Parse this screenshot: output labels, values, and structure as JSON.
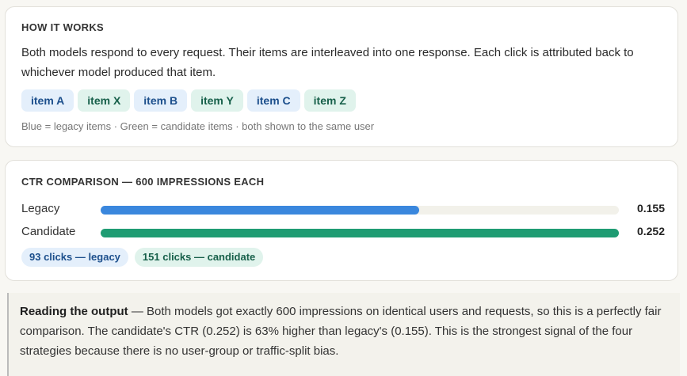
{
  "how_it_works": {
    "heading": "HOW IT WORKS",
    "description": "Both models respond to every request. Their items are interleaved into one response. Each click is attributed back to whichever model produced that item.",
    "items": [
      {
        "label": "item A",
        "model": "legacy"
      },
      {
        "label": "item X",
        "model": "candidate"
      },
      {
        "label": "item B",
        "model": "legacy"
      },
      {
        "label": "item Y",
        "model": "candidate"
      },
      {
        "label": "item C",
        "model": "legacy"
      },
      {
        "label": "item Z",
        "model": "candidate"
      }
    ],
    "legend": "Blue = legacy items · Green = candidate items · both shown to the same user"
  },
  "ctr": {
    "heading": "CTR COMPARISON — 600 IMPRESSIONS EACH",
    "rows": [
      {
        "label": "Legacy",
        "value": "0.155",
        "ctr": 0.155,
        "color": "#3a87dd"
      },
      {
        "label": "Candidate",
        "value": "0.252",
        "ctr": 0.252,
        "color": "#1f9c73"
      }
    ],
    "clicks": [
      "93 clicks — legacy",
      "151 clicks — candidate"
    ]
  },
  "note": {
    "title": "Reading the output",
    "body": " — Both models got exactly 600 impressions on identical users and requests, so this is a perfectly fair comparison. The candidate's CTR (0.252) is 63% higher than legacy's (0.155). This is the strongest signal of the four strategies because there is no user-group or traffic-split bias."
  },
  "colors": {
    "legacy": "#3a87dd",
    "candidate": "#1f9c73"
  }
}
